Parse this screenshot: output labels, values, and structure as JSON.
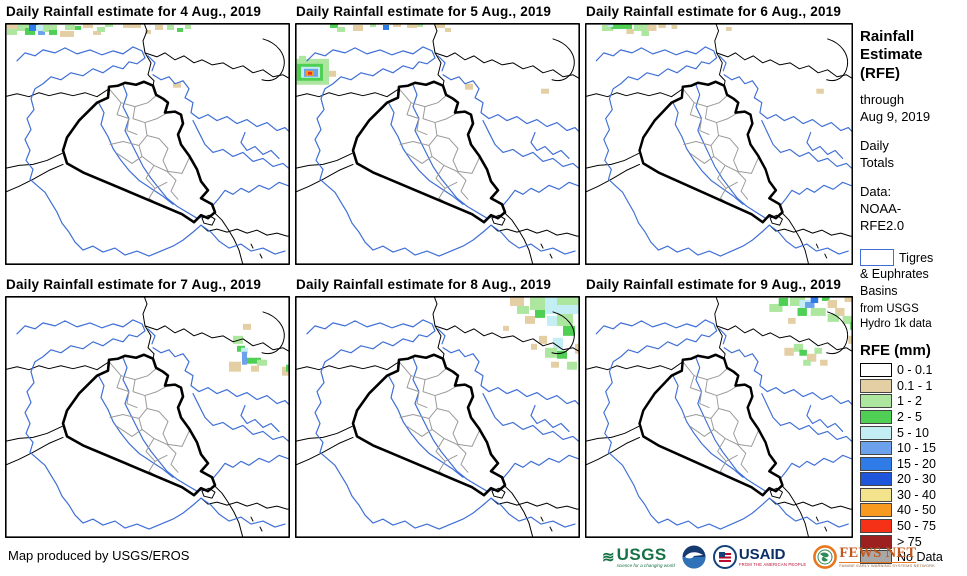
{
  "panels": [
    {
      "title": "Daily Rainfall estimate for 4 Aug., 2019",
      "rain": [
        [
          0,
          0,
          18,
          6,
          "t"
        ],
        [
          12,
          0,
          16,
          8,
          "g1"
        ],
        [
          2,
          6,
          10,
          6,
          "g1"
        ],
        [
          20,
          5,
          10,
          7,
          "g2"
        ],
        [
          24,
          1,
          9,
          7,
          "b2"
        ],
        [
          31,
          2,
          8,
          6,
          "c"
        ],
        [
          33,
          8,
          7,
          4,
          "b1"
        ],
        [
          38,
          2,
          14,
          7,
          "g1"
        ],
        [
          44,
          7,
          8,
          5,
          "g2"
        ],
        [
          55,
          8,
          14,
          6,
          "t"
        ],
        [
          60,
          2,
          10,
          5,
          "g1"
        ],
        [
          70,
          3,
          6,
          4,
          "g2"
        ],
        [
          78,
          0,
          10,
          5,
          "t"
        ],
        [
          88,
          8,
          8,
          4,
          "t"
        ],
        [
          92,
          4,
          8,
          5,
          "g1"
        ],
        [
          100,
          0,
          8,
          4,
          "g1"
        ],
        [
          118,
          0,
          10,
          5,
          "t"
        ],
        [
          128,
          0,
          8,
          5,
          "t"
        ],
        [
          140,
          7,
          6,
          4,
          "t"
        ],
        [
          150,
          2,
          8,
          5,
          "t"
        ],
        [
          162,
          2,
          7,
          5,
          "g1"
        ],
        [
          172,
          5,
          6,
          4,
          "g2"
        ],
        [
          180,
          2,
          6,
          4,
          "g1"
        ],
        [
          168,
          60,
          8,
          5,
          "t"
        ]
      ]
    },
    {
      "title": "Daily Rainfall estimate for 5 Aug., 2019",
      "rain": [
        [
          0,
          36,
          34,
          26,
          "g1"
        ],
        [
          2,
          41,
          26,
          17,
          "g2"
        ],
        [
          6,
          44,
          19,
          11,
          "c"
        ],
        [
          9,
          46,
          14,
          8,
          "b1"
        ],
        [
          11,
          48,
          8,
          5,
          "o"
        ],
        [
          13,
          49,
          4,
          3,
          "r"
        ],
        [
          34,
          48,
          7,
          6,
          "t"
        ],
        [
          4,
          33,
          7,
          4,
          "g1"
        ],
        [
          35,
          0,
          8,
          5,
          "g2"
        ],
        [
          42,
          4,
          8,
          5,
          "g1"
        ],
        [
          58,
          2,
          10,
          6,
          "t"
        ],
        [
          75,
          0,
          6,
          4,
          "g1"
        ],
        [
          88,
          2,
          6,
          5,
          "b2"
        ],
        [
          98,
          0,
          8,
          4,
          "t"
        ],
        [
          112,
          0,
          10,
          5,
          "t"
        ],
        [
          122,
          0,
          6,
          4,
          "g1"
        ],
        [
          140,
          0,
          10,
          5,
          "t"
        ],
        [
          150,
          5,
          6,
          4,
          "t"
        ],
        [
          170,
          61,
          8,
          6,
          "t"
        ],
        [
          246,
          66,
          8,
          5,
          "t"
        ]
      ]
    },
    {
      "title": "Daily Rainfall estimate for 6 Aug., 2019",
      "rain": [
        [
          18,
          2,
          12,
          6,
          "g1"
        ],
        [
          28,
          0,
          22,
          6,
          "g2"
        ],
        [
          24,
          0,
          6,
          4,
          "c"
        ],
        [
          44,
          6,
          8,
          5,
          "t"
        ],
        [
          52,
          0,
          16,
          8,
          "g1"
        ],
        [
          60,
          8,
          8,
          5,
          "g1"
        ],
        [
          66,
          2,
          10,
          6,
          "t"
        ],
        [
          78,
          0,
          8,
          5,
          "t"
        ],
        [
          92,
          2,
          6,
          4,
          "t"
        ],
        [
          150,
          4,
          6,
          4,
          "t"
        ],
        [
          246,
          66,
          8,
          5,
          "t"
        ]
      ]
    },
    {
      "title": "Daily Rainfall estimate for 7 Aug., 2019",
      "rain": [
        [
          238,
          28,
          8,
          6,
          "t"
        ],
        [
          228,
          40,
          10,
          8,
          "g1"
        ],
        [
          232,
          50,
          8,
          6,
          "g2"
        ],
        [
          236,
          52,
          7,
          6,
          "c"
        ],
        [
          237,
          56,
          5,
          13,
          "b1"
        ],
        [
          242,
          62,
          14,
          6,
          "g2"
        ],
        [
          252,
          64,
          10,
          6,
          "g1"
        ],
        [
          224,
          66,
          12,
          10,
          "t"
        ],
        [
          246,
          70,
          8,
          6,
          "t"
        ],
        [
          277,
          71,
          8,
          9,
          "t"
        ],
        [
          281,
          69,
          4,
          7,
          "g2"
        ]
      ]
    },
    {
      "title": "Daily Rainfall estimate for 8 Aug., 2019",
      "rain": [
        [
          215,
          0,
          14,
          10,
          "t"
        ],
        [
          235,
          0,
          20,
          14,
          "g1"
        ],
        [
          250,
          0,
          35,
          18,
          "c"
        ],
        [
          262,
          0,
          23,
          9,
          "g1"
        ],
        [
          222,
          10,
          12,
          8,
          "g1"
        ],
        [
          240,
          14,
          10,
          8,
          "g2"
        ],
        [
          252,
          20,
          12,
          10,
          "c"
        ],
        [
          262,
          18,
          16,
          12,
          "g1"
        ],
        [
          230,
          20,
          10,
          8,
          "t"
        ],
        [
          268,
          30,
          12,
          10,
          "g2"
        ],
        [
          244,
          40,
          8,
          8,
          "t"
        ],
        [
          258,
          42,
          10,
          12,
          "c"
        ],
        [
          280,
          48,
          5,
          10,
          "t"
        ],
        [
          236,
          48,
          6,
          6,
          "t"
        ],
        [
          250,
          52,
          12,
          10,
          "g1"
        ],
        [
          262,
          55,
          10,
          8,
          "g2"
        ],
        [
          256,
          66,
          8,
          6,
          "t"
        ],
        [
          272,
          66,
          10,
          8,
          "g1"
        ],
        [
          208,
          30,
          6,
          5,
          "t"
        ]
      ]
    },
    {
      "title": "Daily Rainfall estimate for 9 Aug., 2019",
      "rain": [
        [
          196,
          8,
          14,
          8,
          "g1"
        ],
        [
          206,
          2,
          10,
          8,
          "g2"
        ],
        [
          218,
          0,
          16,
          10,
          "g1"
        ],
        [
          228,
          4,
          14,
          8,
          "c"
        ],
        [
          234,
          6,
          10,
          6,
          "b1"
        ],
        [
          240,
          1,
          8,
          6,
          "b2"
        ],
        [
          226,
          12,
          10,
          8,
          "g2"
        ],
        [
          240,
          12,
          16,
          8,
          "g1"
        ],
        [
          252,
          0,
          8,
          5,
          "g2"
        ],
        [
          258,
          4,
          10,
          8,
          "t"
        ],
        [
          266,
          12,
          10,
          8,
          "t"
        ],
        [
          258,
          18,
          12,
          8,
          "g1"
        ],
        [
          276,
          0,
          9,
          6,
          "t"
        ],
        [
          274,
          20,
          10,
          8,
          "g1"
        ],
        [
          216,
          22,
          8,
          6,
          "t"
        ],
        [
          282,
          26,
          3,
          8,
          "g2"
        ],
        [
          212,
          52,
          10,
          8,
          "t"
        ],
        [
          222,
          48,
          10,
          8,
          "g1"
        ],
        [
          228,
          54,
          8,
          6,
          "g2"
        ],
        [
          236,
          58,
          10,
          8,
          "t"
        ],
        [
          244,
          52,
          8,
          6,
          "g1"
        ],
        [
          250,
          64,
          8,
          6,
          "t"
        ],
        [
          232,
          64,
          8,
          6,
          "g1"
        ],
        [
          280,
          40,
          5,
          8,
          "t"
        ]
      ]
    }
  ],
  "colors": {
    "t": "#E4CFA5",
    "g1": "#ACE69F",
    "g2": "#4FD054",
    "c": "#C3EEF3",
    "b1": "#6CA2EB",
    "b2": "#2F7BE8",
    "b3": "#1E55DB",
    "y": "#F2E38C",
    "o": "#F79A1F",
    "r": "#F53217",
    "dr": "#9C2020",
    "nd": "#A8A8A8",
    "basin_outline": "#3F6FD6"
  },
  "sidebar": {
    "title": "Rainfall\nEstimate\n(RFE)",
    "through": "through\nAug 9, 2019",
    "totals": "Daily\nTotals",
    "data_source": "Data:\nNOAA-\nRFE2.0",
    "basin_legend": {
      "label_line1": "Tigres",
      "label_rest": "& Euphrates\nBasins",
      "source": "from USGS\nHydro 1k data"
    },
    "rfe_legend": {
      "title": "RFE (mm)",
      "entries": [
        {
          "label": "0 - 0.1",
          "color": "#FFFFFF"
        },
        {
          "label": "0.1 - 1",
          "color": "#E4CFA5"
        },
        {
          "label": "1 - 2",
          "color": "#ACE69F"
        },
        {
          "label": "2 - 5",
          "color": "#4FD054"
        },
        {
          "label": "5 - 10",
          "color": "#C3EEF3"
        },
        {
          "label": "10 - 15",
          "color": "#6CA2EB"
        },
        {
          "label": "15 - 20",
          "color": "#2F7BE8"
        },
        {
          "label": "20 - 30",
          "color": "#1E55DB"
        },
        {
          "label": "30 - 40",
          "color": "#F2E38C"
        },
        {
          "label": "40 - 50",
          "color": "#F79A1F"
        },
        {
          "label": "50 - 75",
          "color": "#F53217"
        },
        {
          "label": "> 75",
          "color": "#9C2020"
        },
        {
          "label": "No Data",
          "color": "#A8A8A8"
        }
      ]
    }
  },
  "footer": {
    "credit": "Map produced by USGS/EROS",
    "logos": {
      "usgs": {
        "text": "USGS",
        "tagline": "science for a changing world"
      },
      "usaid": {
        "text": "USAID",
        "tagline": "FROM THE AMERICAN PEOPLE"
      },
      "fewsnet": {
        "text": "FEWS NET",
        "tagline": "FAMINE EARLY WARNING SYSTEMS NETWORK"
      }
    }
  }
}
